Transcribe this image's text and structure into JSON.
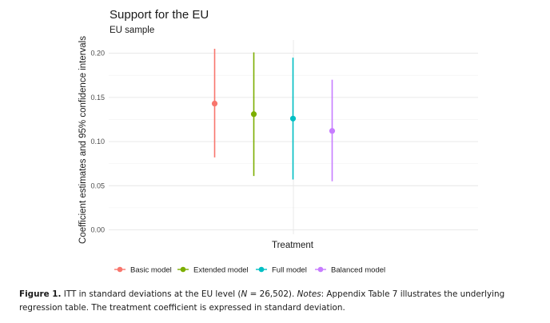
{
  "chart_data": {
    "type": "scatter",
    "title": "Support for the EU",
    "subtitle": "EU sample",
    "xlabel": "Treatment",
    "ylabel": "Coefficient estimates and 95% confidence intervals",
    "ylim": [
      -0.005,
      0.215
    ],
    "yticks": [
      0.0,
      0.05,
      0.1,
      0.15,
      0.2
    ],
    "ytick_labels": [
      "0.00",
      "0.05",
      "0.10",
      "0.15",
      "0.20"
    ],
    "grid": true,
    "legend_position": "bottom",
    "series": [
      {
        "name": "Basic model",
        "estimate": 0.143,
        "ci_low": 0.082,
        "ci_high": 0.205,
        "color": "#F8766D"
      },
      {
        "name": "Extended model",
        "estimate": 0.131,
        "ci_low": 0.061,
        "ci_high": 0.201,
        "color": "#7CAE00"
      },
      {
        "name": "Full model",
        "estimate": 0.126,
        "ci_low": 0.057,
        "ci_high": 0.195,
        "color": "#00BFC4"
      },
      {
        "name": "Balanced model",
        "estimate": 0.112,
        "ci_low": 0.055,
        "ci_high": 0.17,
        "color": "#C77CFF"
      }
    ]
  },
  "caption": {
    "label": "Figure 1.",
    "text_before": "ITT in standard deviations at the EU level (",
    "n_symbol": "N",
    "text_n": " = 26,502). ",
    "notes_label": "Notes",
    "text_after": ": Appendix Table 7 illustrates the underlying regression table. The treatment coefficient is expressed in standard deviation."
  }
}
